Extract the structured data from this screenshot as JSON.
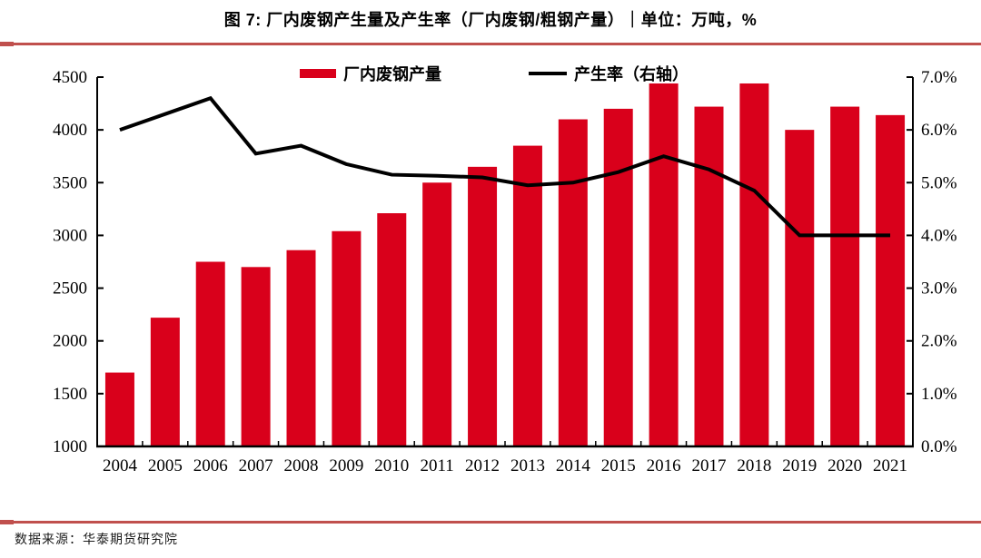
{
  "page": {
    "title": "图 7: 厂内废钢产生量及产生率（厂内废钢/粗钢产量）｜单位：万吨，%",
    "source": "数据来源：华泰期货研究院"
  },
  "colors": {
    "bar_red": "#D9001B",
    "line_black": "#000000",
    "divider_red": "#C0504D",
    "axis_black": "#000000"
  },
  "chart_data": {
    "type": "bar",
    "subtype": "bar+line combo",
    "title": "图 7: 厂内废钢产生量及产生率（厂内废钢/粗钢产量）｜单位：万吨，%",
    "categories": [
      "2004",
      "2005",
      "2006",
      "2007",
      "2008",
      "2009",
      "2010",
      "2011",
      "2012",
      "2013",
      "2014",
      "2015",
      "2016",
      "2017",
      "2018",
      "2019",
      "2020",
      "2021"
    ],
    "series": [
      {
        "name": "厂内废钢产量",
        "type": "bar",
        "axis": "left",
        "color": "#D9001B",
        "values": [
          1700,
          2220,
          2750,
          2700,
          2860,
          3040,
          3210,
          3500,
          3650,
          3850,
          4100,
          4200,
          4440,
          4220,
          4440,
          4000,
          4220,
          4140
        ]
      },
      {
        "name": "产生率（右轴）",
        "type": "line",
        "axis": "right",
        "color": "#000000",
        "values": [
          6.0,
          6.3,
          6.6,
          5.55,
          5.7,
          5.35,
          5.15,
          5.13,
          5.1,
          4.95,
          5.0,
          5.2,
          5.5,
          5.25,
          4.85,
          4.0,
          4.0,
          4.0
        ]
      }
    ],
    "left_axis": {
      "min": 1000,
      "max": 4500,
      "step": 500,
      "ticks": [
        "1000",
        "1500",
        "2000",
        "2500",
        "3000",
        "3500",
        "4000",
        "4500"
      ],
      "unit": "万吨"
    },
    "right_axis": {
      "min": 0,
      "max": 7,
      "step": 1,
      "ticks": [
        "0.0%",
        "1.0%",
        "2.0%",
        "3.0%",
        "4.0%",
        "5.0%",
        "6.0%",
        "7.0%"
      ],
      "unit": "%"
    },
    "legend": [
      "厂内废钢产量",
      "产生率（右轴）"
    ],
    "legend_position": "top-center",
    "grid": false
  }
}
